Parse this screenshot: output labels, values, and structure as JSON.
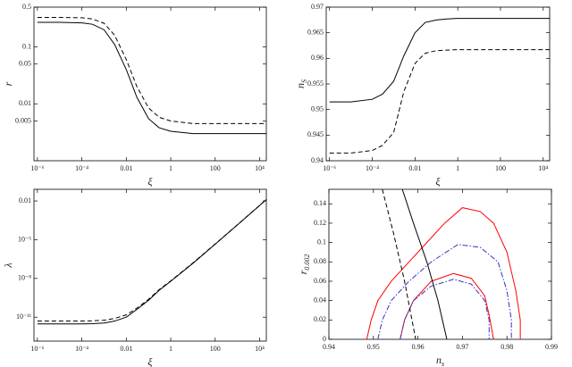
{
  "chart_data": [
    {
      "type": "line",
      "xscale": "log",
      "yscale": "log",
      "xlabel": {
        "base": "ξ"
      },
      "ylabel": {
        "base": "r"
      },
      "x": [
        1e-06,
        1e-05,
        0.0001,
        0.0003,
        0.001,
        0.003,
        0.01,
        0.03,
        0.1,
        0.3,
        1,
        10,
        100,
        1000,
        10000,
        20000
      ],
      "xlim": [
        7e-07,
        20000
      ],
      "xticks": [
        {
          "value": 1e-06,
          "label": "10⁻⁶"
        },
        {
          "value": 0.0001,
          "label": "10⁻⁴"
        },
        0.01,
        1,
        100,
        {
          "value": 10000,
          "label": "10⁴"
        }
      ],
      "ylim": [
        0.001,
        0.5
      ],
      "yticks": [
        0.5,
        0.1,
        0.05,
        0.01,
        0.005
      ],
      "series": [
        {
          "color": "#000000",
          "dash": "solid",
          "values": [
            0.27,
            0.27,
            0.265,
            0.25,
            0.2,
            0.11,
            0.04,
            0.013,
            0.0055,
            0.0038,
            0.0033,
            0.003,
            0.003,
            0.003,
            0.003,
            0.003
          ]
        },
        {
          "color": "#000000",
          "dash": "dashed",
          "values": [
            0.33,
            0.33,
            0.325,
            0.31,
            0.26,
            0.16,
            0.06,
            0.02,
            0.0085,
            0.0058,
            0.005,
            0.0045,
            0.0045,
            0.0045,
            0.0045,
            0.0045
          ]
        }
      ]
    },
    {
      "type": "line",
      "xscale": "log",
      "yscale": "linear",
      "xlabel": {
        "base": "ξ"
      },
      "ylabel": {
        "base": "n",
        "sub": "S"
      },
      "x": [
        1e-06,
        1e-05,
        0.0001,
        0.0003,
        0.001,
        0.003,
        0.01,
        0.03,
        0.1,
        0.3,
        1,
        10,
        100,
        1000,
        10000,
        20000
      ],
      "xlim": [
        7e-07,
        20000
      ],
      "xticks": [
        {
          "value": 1e-06,
          "label": "10⁻⁶"
        },
        {
          "value": 0.0001,
          "label": "10⁻⁴"
        },
        0.01,
        1,
        100,
        {
          "value": 10000,
          "label": "10⁴"
        }
      ],
      "ylim": [
        0.94,
        0.97
      ],
      "yticks": [
        0.94,
        0.945,
        0.95,
        0.955,
        0.96,
        0.965,
        0.97
      ],
      "series": [
        {
          "color": "#000000",
          "dash": "solid",
          "values": [
            0.9515,
            0.9515,
            0.952,
            0.953,
            0.9555,
            0.9605,
            0.965,
            0.967,
            0.9675,
            0.9677,
            0.9678,
            0.9678,
            0.9678,
            0.9678,
            0.9678,
            0.9678
          ]
        },
        {
          "color": "#000000",
          "dash": "dashed",
          "values": [
            0.9415,
            0.9415,
            0.942,
            0.943,
            0.9455,
            0.9535,
            0.959,
            0.961,
            0.9615,
            0.9616,
            0.9617,
            0.9617,
            0.9617,
            0.9617,
            0.9617,
            0.9617
          ]
        }
      ]
    },
    {
      "type": "line",
      "xscale": "log",
      "yscale": "log",
      "xlabel": {
        "base": "ξ"
      },
      "ylabel": {
        "base": "λ"
      },
      "x": [
        1e-06,
        1e-05,
        0.0001,
        0.0003,
        0.001,
        0.003,
        0.01,
        0.03,
        0.1,
        0.3,
        1,
        10,
        100,
        1000,
        10000,
        20000
      ],
      "xlim": [
        7e-07,
        20000
      ],
      "xticks": [
        {
          "value": 1e-06,
          "label": "10⁻⁶"
        },
        {
          "value": 0.0001,
          "label": "10⁻⁴"
        },
        0.01,
        1,
        100,
        {
          "value": 10000,
          "label": "10⁴"
        }
      ],
      "ylim": [
        1.4e-13,
        0.08
      ],
      "yticks": [
        {
          "value": 1e-11,
          "label": "10⁻¹¹"
        },
        {
          "value": 1e-08,
          "label": "10⁻⁸"
        },
        {
          "value": 1e-05,
          "label": "10⁻⁵"
        },
        0.01
      ],
      "series": [
        {
          "color": "#000000",
          "dash": "solid",
          "values": [
            3e-12,
            3e-12,
            3e-12,
            3.1e-12,
            3.5e-12,
            5e-12,
            1e-11,
            4e-11,
            2e-10,
            1.2e-09,
            6e-09,
            1.5e-07,
            4.5e-06,
            0.00014,
            0.0045,
            0.013
          ]
        },
        {
          "color": "#000000",
          "dash": "dashed",
          "values": [
            5e-12,
            5e-12,
            5e-12,
            5.2e-12,
            5.8e-12,
            8e-12,
            1.5e-11,
            5e-11,
            2.4e-10,
            1.35e-09,
            6.5e-09,
            1.6e-07,
            4.7e-06,
            0.000145,
            0.0046,
            0.013
          ]
        }
      ]
    },
    {
      "type": "line",
      "xscale": "linear",
      "yscale": "linear",
      "xlabel": {
        "base": "n",
        "sub": "s"
      },
      "ylabel": {
        "base": "r",
        "sub": "0.002"
      },
      "xlim": [
        0.94,
        0.99
      ],
      "xticks": [
        0.94,
        0.95,
        0.96,
        0.97,
        0.98,
        0.99
      ],
      "ylim": [
        0,
        0.155
      ],
      "yticks": [
        0,
        0.02,
        0.04,
        0.06,
        0.08,
        0.1,
        0.12,
        0.14
      ],
      "series": [
        {
          "color": "#ff0000",
          "dash": "solid",
          "x": [
            0.9485,
            0.9495,
            0.951,
            0.954,
            0.958,
            0.962,
            0.966,
            0.97,
            0.974,
            0.977,
            0.98,
            0.982,
            0.983,
            0.983
          ],
          "values": [
            0,
            0.02,
            0.04,
            0.06,
            0.08,
            0.1,
            0.12,
            0.136,
            0.132,
            0.12,
            0.09,
            0.05,
            0.02,
            0
          ]
        },
        {
          "color": "#ff0000",
          "dash": "solid",
          "x": [
            0.956,
            0.957,
            0.959,
            0.963,
            0.968,
            0.972,
            0.975,
            0.976,
            0.977
          ],
          "values": [
            0,
            0.02,
            0.04,
            0.06,
            0.068,
            0.063,
            0.045,
            0.025,
            0
          ]
        },
        {
          "color": "#3333cc",
          "dash": "dashdot",
          "x": [
            0.951,
            0.952,
            0.954,
            0.958,
            0.963,
            0.969,
            0.974,
            0.978,
            0.98,
            0.981,
            0.981
          ],
          "values": [
            0,
            0.02,
            0.04,
            0.06,
            0.08,
            0.098,
            0.095,
            0.08,
            0.05,
            0.02,
            0
          ]
        },
        {
          "color": "#3333cc",
          "dash": "dashdot",
          "x": [
            0.956,
            0.957,
            0.959,
            0.963,
            0.968,
            0.972,
            0.975,
            0.976,
            0.976
          ],
          "values": [
            0,
            0.02,
            0.04,
            0.055,
            0.062,
            0.057,
            0.04,
            0.02,
            0
          ]
        },
        {
          "color": "#000000",
          "dash": "solid",
          "x": [
            0.9565,
            0.959,
            0.962,
            0.9645,
            0.9665
          ],
          "values": [
            0.155,
            0.12,
            0.08,
            0.04,
            0
          ]
        },
        {
          "color": "#000000",
          "dash": "dashed",
          "x": [
            0.952,
            0.9545,
            0.957,
            0.9595
          ],
          "values": [
            0.155,
            0.11,
            0.06,
            0
          ]
        }
      ]
    }
  ]
}
